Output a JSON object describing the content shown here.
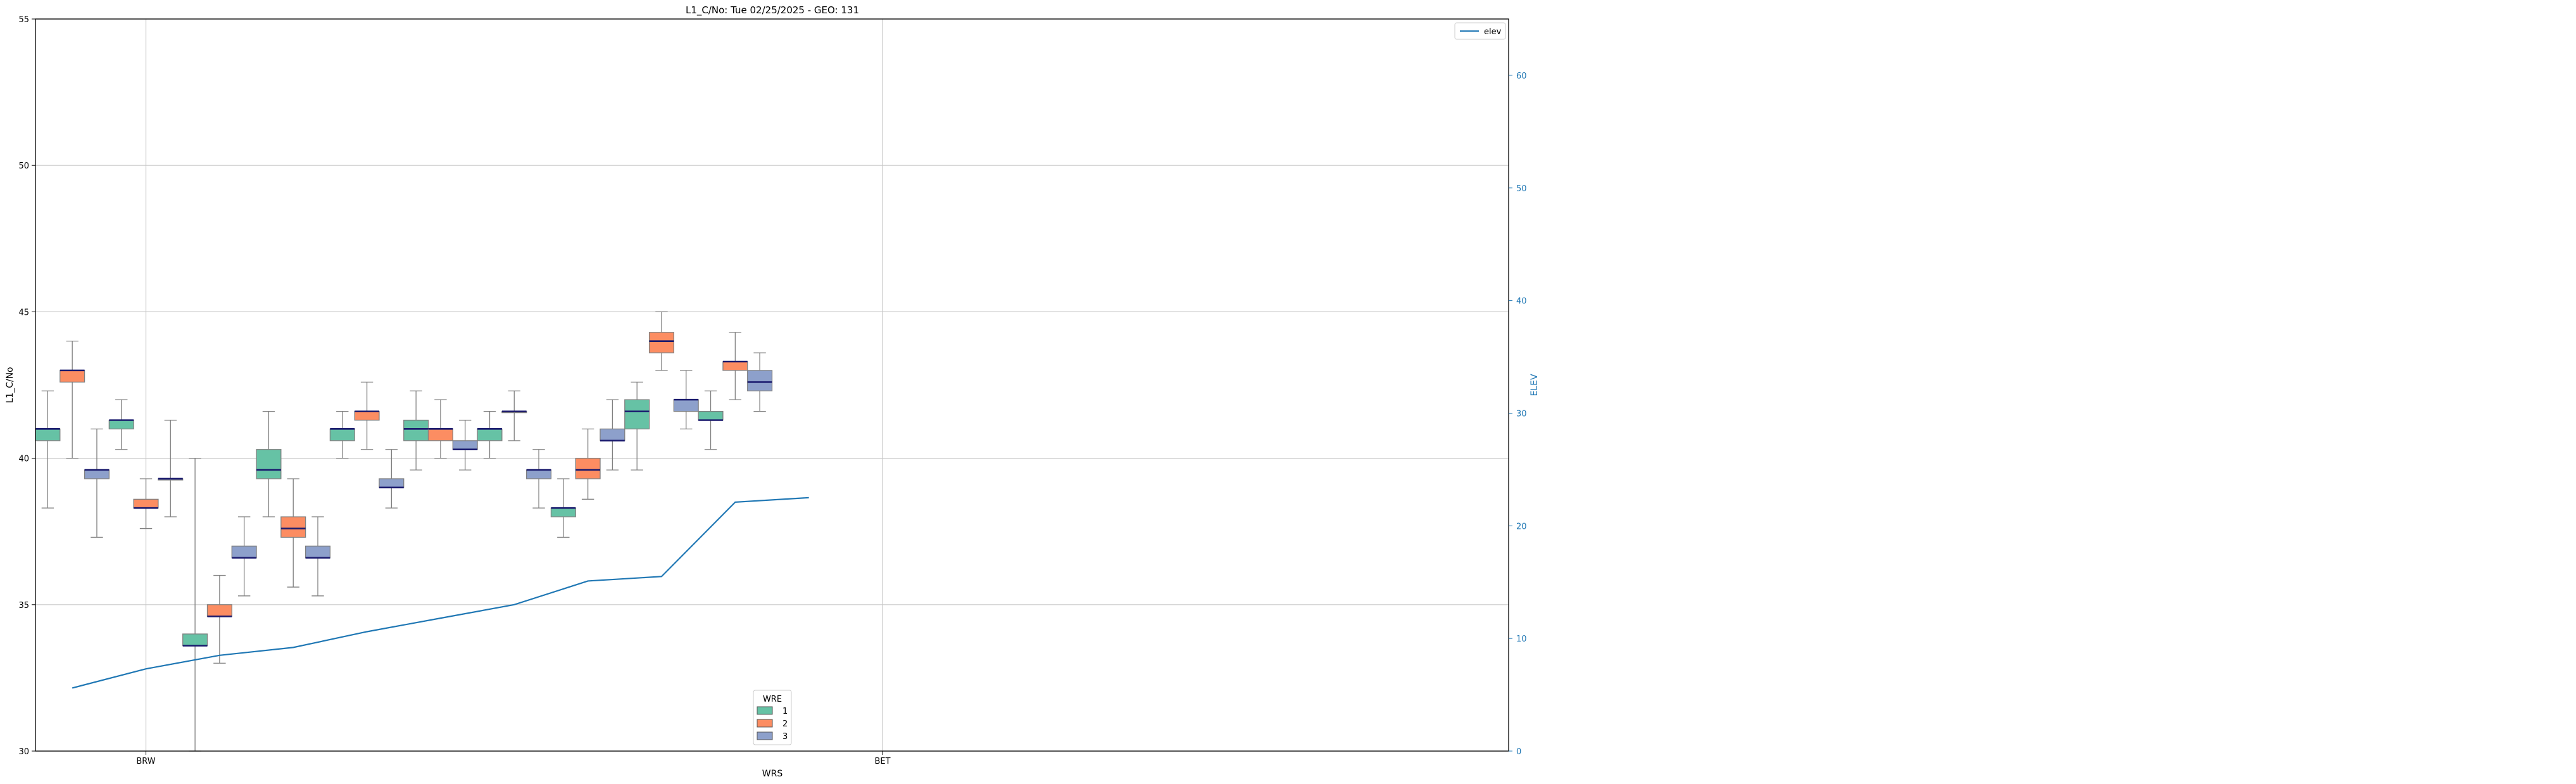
{
  "chart_data": {
    "type": "box",
    "title": "L1_C/No: Tue 02/25/2025 - GEO: 131",
    "xlabel": "WRS",
    "ylabel": "L1_C/No",
    "y2label": "ELEV",
    "ylim": [
      30,
      55
    ],
    "y2lim": [
      0,
      65
    ],
    "yticks": [
      30,
      35,
      40,
      45,
      50,
      55
    ],
    "y2ticks": [
      0,
      10,
      20,
      30,
      40,
      50,
      60
    ],
    "x_tick_labels": [
      {
        "label": "BRW",
        "group": 1
      },
      {
        "label": "BET",
        "group": 11
      }
    ],
    "grid": true,
    "wre_legend": {
      "title": "WRE",
      "entries": [
        {
          "label": "1",
          "color": "#66c2a5"
        },
        {
          "label": "2",
          "color": "#fc8d62"
        },
        {
          "label": "3",
          "color": "#8da0cb"
        }
      ],
      "placement": "bottom-center"
    },
    "elev_legend": {
      "entries": [
        {
          "label": "elev",
          "color": "#1f77b4"
        }
      ],
      "placement": "top-right"
    },
    "num_groups": 20,
    "boxes": [
      {
        "group": 0,
        "wre": 1,
        "whislo": 38.3,
        "q1": 40.6,
        "med": 41.0,
        "q3": 41.0,
        "whishi": 42.3
      },
      {
        "group": 0,
        "wre": 2,
        "whislo": 40.0,
        "q1": 42.6,
        "med": 43.0,
        "q3": 43.0,
        "whishi": 44.0
      },
      {
        "group": 0,
        "wre": 3,
        "whislo": 37.3,
        "q1": 39.3,
        "med": 39.6,
        "q3": 39.6,
        "whishi": 41.0
      },
      {
        "group": 1,
        "wre": 1,
        "whislo": 40.3,
        "q1": 41.0,
        "med": 41.3,
        "q3": 41.3,
        "whishi": 42.0
      },
      {
        "group": 1,
        "wre": 2,
        "whislo": 37.6,
        "q1": 38.3,
        "med": 38.3,
        "q3": 38.6,
        "whishi": 39.3
      },
      {
        "group": 1,
        "wre": 3,
        "whislo": 38.0,
        "q1": 39.3,
        "med": 39.3,
        "q3": 39.3,
        "whishi": 41.3
      },
      {
        "group": 2,
        "wre": 1,
        "whislo": 30.0,
        "q1": 33.6,
        "med": 33.6,
        "q3": 34.0,
        "whishi": 40.0
      },
      {
        "group": 2,
        "wre": 2,
        "whislo": 33.0,
        "q1": 34.6,
        "med": 34.6,
        "q3": 35.0,
        "whishi": 36.0
      },
      {
        "group": 2,
        "wre": 3,
        "whislo": 35.3,
        "q1": 36.6,
        "med": 36.6,
        "q3": 37.0,
        "whishi": 38.0
      },
      {
        "group": 3,
        "wre": 1,
        "whislo": 38.0,
        "q1": 39.3,
        "med": 39.6,
        "q3": 40.3,
        "whishi": 41.6
      },
      {
        "group": 3,
        "wre": 2,
        "whislo": 35.6,
        "q1": 37.3,
        "med": 37.6,
        "q3": 38.0,
        "whishi": 39.3
      },
      {
        "group": 3,
        "wre": 3,
        "whislo": 35.3,
        "q1": 36.6,
        "med": 36.6,
        "q3": 37.0,
        "whishi": 38.0
      },
      {
        "group": 4,
        "wre": 1,
        "whislo": 40.0,
        "q1": 40.6,
        "med": 41.0,
        "q3": 41.0,
        "whishi": 41.6
      },
      {
        "group": 4,
        "wre": 2,
        "whislo": 40.3,
        "q1": 41.3,
        "med": 41.6,
        "q3": 41.6,
        "whishi": 42.6
      },
      {
        "group": 4,
        "wre": 3,
        "whislo": 38.3,
        "q1": 39.0,
        "med": 39.0,
        "q3": 39.3,
        "whishi": 40.3
      },
      {
        "group": 5,
        "wre": 1,
        "whislo": 39.6,
        "q1": 40.6,
        "med": 41.0,
        "q3": 41.3,
        "whishi": 42.3
      },
      {
        "group": 5,
        "wre": 2,
        "whislo": 40.0,
        "q1": 40.6,
        "med": 41.0,
        "q3": 41.0,
        "whishi": 42.0
      },
      {
        "group": 5,
        "wre": 3,
        "whislo": 39.6,
        "q1": 40.3,
        "med": 40.3,
        "q3": 40.6,
        "whishi": 41.3
      },
      {
        "group": 6,
        "wre": 1,
        "whislo": 40.0,
        "q1": 40.6,
        "med": 41.0,
        "q3": 41.0,
        "whishi": 41.6
      },
      {
        "group": 6,
        "wre": 2,
        "whislo": 40.6,
        "q1": 41.6,
        "med": 41.6,
        "q3": 41.6,
        "whishi": 42.3
      },
      {
        "group": 6,
        "wre": 3,
        "whislo": 38.3,
        "q1": 39.3,
        "med": 39.6,
        "q3": 39.6,
        "whishi": 40.3
      },
      {
        "group": 7,
        "wre": 1,
        "whislo": 37.3,
        "q1": 38.0,
        "med": 38.3,
        "q3": 38.3,
        "whishi": 39.3
      },
      {
        "group": 7,
        "wre": 2,
        "whislo": 38.6,
        "q1": 39.3,
        "med": 39.6,
        "q3": 40.0,
        "whishi": 41.0
      },
      {
        "group": 7,
        "wre": 3,
        "whislo": 39.6,
        "q1": 40.6,
        "med": 40.6,
        "q3": 41.0,
        "whishi": 42.0
      },
      {
        "group": 8,
        "wre": 1,
        "whislo": 39.6,
        "q1": 41.0,
        "med": 41.6,
        "q3": 42.0,
        "whishi": 42.6
      },
      {
        "group": 8,
        "wre": 2,
        "whislo": 43.0,
        "q1": 43.6,
        "med": 44.0,
        "q3": 44.3,
        "whishi": 45.0
      },
      {
        "group": 8,
        "wre": 3,
        "whislo": 41.0,
        "q1": 41.6,
        "med": 42.0,
        "q3": 42.0,
        "whishi": 43.0
      },
      {
        "group": 9,
        "wre": 1,
        "whislo": 40.3,
        "q1": 41.3,
        "med": 41.3,
        "q3": 41.6,
        "whishi": 42.3
      },
      {
        "group": 9,
        "wre": 2,
        "whislo": 42.0,
        "q1": 43.0,
        "med": 43.3,
        "q3": 43.3,
        "whishi": 44.3
      },
      {
        "group": 9,
        "wre": 3,
        "whislo": 41.6,
        "q1": 42.3,
        "med": 42.6,
        "q3": 43.0,
        "whishi": 43.6
      }
    ],
    "elev_series": {
      "name": "elev",
      "groups": [
        0,
        1,
        2,
        3,
        4,
        5,
        6,
        7,
        8,
        9,
        10
      ],
      "values": [
        5.6,
        7.3,
        8.5,
        9.2,
        10.6,
        11.8,
        13.0,
        15.1,
        15.5,
        22.1,
        22.5
      ]
    }
  }
}
